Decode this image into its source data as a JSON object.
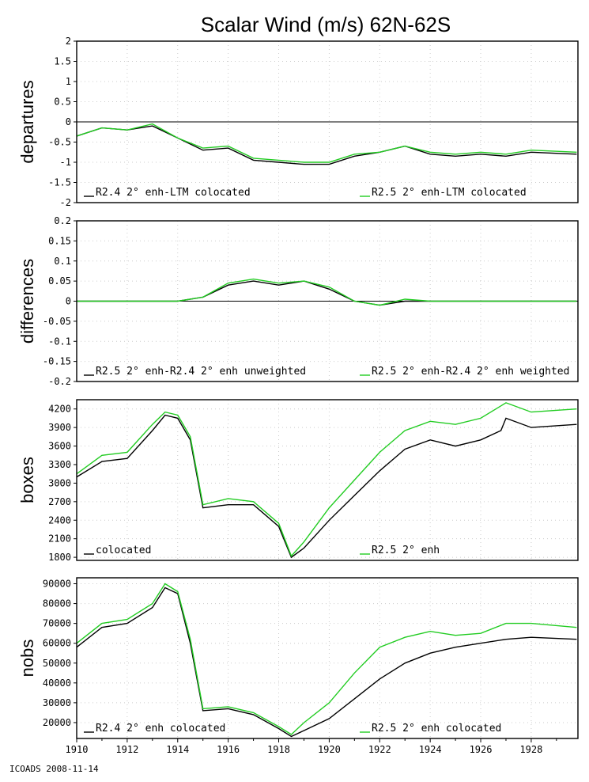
{
  "title": "Scalar Wind (m/s) 62N-62S",
  "footer": "ICOADS 2008-11-14",
  "colors": {
    "series_a": "#000000",
    "series_b": "#22cc22"
  },
  "chart_data": [
    {
      "type": "line",
      "ylabel": "departures",
      "ylim": [
        -2,
        2
      ],
      "yticks": [
        "2",
        "1.5",
        "1",
        "0.5",
        "0",
        "-0.5",
        "-1",
        "-1.5",
        "-2"
      ],
      "zero_line": true,
      "grid": true,
      "legend": [
        "R2.4 2° enh-LTM colocated",
        "R2.5 2° enh-LTM colocated"
      ],
      "series": [
        {
          "name": "R2.4 2° enh-LTM colocated",
          "x": [
            1910,
            1911,
            1912,
            1913,
            1914,
            1915,
            1916,
            1917,
            1918,
            1919,
            1920,
            1921,
            1922,
            1923,
            1924,
            1925,
            1926,
            1927,
            1928,
            1929.8
          ],
          "values": [
            -0.35,
            -0.15,
            -0.2,
            -0.1,
            -0.4,
            -0.7,
            -0.65,
            -0.95,
            -1.0,
            -1.05,
            -1.05,
            -0.85,
            -0.75,
            -0.6,
            -0.8,
            -0.85,
            -0.8,
            -0.85,
            -0.75,
            -0.8
          ]
        },
        {
          "name": "R2.5 2° enh-LTM colocated",
          "x": [
            1910,
            1911,
            1912,
            1913,
            1914,
            1915,
            1916,
            1917,
            1918,
            1919,
            1920,
            1921,
            1922,
            1923,
            1924,
            1925,
            1926,
            1927,
            1928,
            1929.8
          ],
          "values": [
            -0.35,
            -0.15,
            -0.2,
            -0.05,
            -0.4,
            -0.65,
            -0.6,
            -0.9,
            -0.95,
            -1.0,
            -1.0,
            -0.8,
            -0.75,
            -0.6,
            -0.75,
            -0.8,
            -0.75,
            -0.8,
            -0.7,
            -0.75
          ]
        }
      ]
    },
    {
      "type": "line",
      "ylabel": "differences",
      "ylim": [
        -0.2,
        0.2
      ],
      "yticks": [
        "0.2",
        "0.15",
        "0.1",
        "0.05",
        "0",
        "-0.05",
        "-0.1",
        "-0.15",
        "-0.2"
      ],
      "zero_line": true,
      "grid": true,
      "legend": [
        "R2.5 2° enh-R2.4 2° enh unweighted",
        "R2.5 2° enh-R2.4 2° enh weighted"
      ],
      "series": [
        {
          "name": "R2.5 2° enh-R2.4 2° enh unweighted",
          "x": [
            1910,
            1911,
            1912,
            1913,
            1914,
            1915,
            1916,
            1917,
            1918,
            1919,
            1920,
            1921,
            1922,
            1923,
            1924,
            1925,
            1926,
            1927,
            1928,
            1929.8
          ],
          "values": [
            0,
            0,
            0,
            0,
            0,
            0.01,
            0.04,
            0.05,
            0.04,
            0.05,
            0.03,
            0,
            -0.01,
            0,
            0,
            0,
            0,
            0,
            0,
            0
          ]
        },
        {
          "name": "R2.5 2° enh-R2.4 2° enh weighted",
          "x": [
            1910,
            1911,
            1912,
            1913,
            1914,
            1915,
            1916,
            1917,
            1918,
            1919,
            1920,
            1921,
            1922,
            1923,
            1924,
            1925,
            1926,
            1927,
            1928,
            1929.8
          ],
          "values": [
            0,
            0,
            0,
            0,
            0,
            0.01,
            0.045,
            0.055,
            0.045,
            0.05,
            0.035,
            0,
            -0.01,
            0.005,
            0,
            0,
            0,
            0,
            0,
            0
          ]
        }
      ]
    },
    {
      "type": "line",
      "ylabel": "boxes",
      "ylim": [
        1750,
        4350
      ],
      "yticks": [
        "4200",
        "3900",
        "3600",
        "3300",
        "3000",
        "2700",
        "2400",
        "2100",
        "1800"
      ],
      "zero_line": false,
      "grid": true,
      "legend": [
        "colocated",
        "R2.5 2° enh"
      ],
      "series": [
        {
          "name": "colocated",
          "x": [
            1910,
            1911,
            1912,
            1913,
            1913.5,
            1914,
            1914.5,
            1915,
            1916,
            1917,
            1918,
            1918.5,
            1919,
            1920,
            1921,
            1922,
            1923,
            1924,
            1925,
            1926,
            1926.8,
            1927,
            1928,
            1929.8
          ],
          "values": [
            3100,
            3350,
            3400,
            3850,
            4100,
            4050,
            3700,
            2600,
            2650,
            2650,
            2300,
            1800,
            1950,
            2400,
            2800,
            3200,
            3550,
            3700,
            3600,
            3700,
            3850,
            4050,
            3900,
            3950
          ]
        },
        {
          "name": "R2.5 2° enh",
          "x": [
            1910,
            1911,
            1912,
            1913,
            1913.5,
            1914,
            1914.5,
            1915,
            1916,
            1917,
            1918,
            1918.5,
            1919,
            1920,
            1921,
            1922,
            1923,
            1924,
            1925,
            1926,
            1926.8,
            1927,
            1928,
            1929.8
          ],
          "values": [
            3150,
            3450,
            3500,
            3950,
            4150,
            4100,
            3750,
            2650,
            2750,
            2700,
            2350,
            1820,
            2050,
            2600,
            3050,
            3500,
            3850,
            4000,
            3950,
            4050,
            4250,
            4300,
            4150,
            4200
          ]
        }
      ]
    },
    {
      "type": "line",
      "ylabel": "nobs",
      "ylim": [
        12000,
        93000
      ],
      "yticks": [
        "90000",
        "80000",
        "70000",
        "60000",
        "50000",
        "40000",
        "30000",
        "20000"
      ],
      "zero_line": false,
      "grid": true,
      "legend": [
        "R2.4 2° enh colocated",
        "R2.5 2° enh colocated"
      ],
      "xticks": [
        "1910",
        "1912",
        "1914",
        "1916",
        "1918",
        "1920",
        "1922",
        "1924",
        "1926",
        "1928"
      ],
      "series": [
        {
          "name": "R2.4 2° enh colocated",
          "x": [
            1910,
            1911,
            1912,
            1913,
            1913.5,
            1914,
            1914.5,
            1915,
            1916,
            1917,
            1918,
            1918.5,
            1919,
            1920,
            1921,
            1922,
            1923,
            1924,
            1925,
            1926,
            1927,
            1928,
            1929.8
          ],
          "values": [
            58000,
            68000,
            70000,
            78000,
            88000,
            85000,
            60000,
            26000,
            27000,
            24000,
            17000,
            13000,
            16000,
            22000,
            32000,
            42000,
            50000,
            55000,
            58000,
            60000,
            62000,
            63000,
            62000
          ]
        },
        {
          "name": "R2.5 2° enh colocated",
          "x": [
            1910,
            1911,
            1912,
            1913,
            1913.5,
            1914,
            1914.5,
            1915,
            1916,
            1917,
            1918,
            1918.5,
            1919,
            1920,
            1921,
            1922,
            1923,
            1924,
            1925,
            1926,
            1927,
            1928,
            1929.8
          ],
          "values": [
            60000,
            70000,
            72000,
            80000,
            90000,
            86000,
            62000,
            27000,
            28000,
            25000,
            18000,
            14000,
            20000,
            30000,
            45000,
            58000,
            63000,
            66000,
            64000,
            65000,
            70000,
            70000,
            68000
          ]
        }
      ]
    }
  ]
}
